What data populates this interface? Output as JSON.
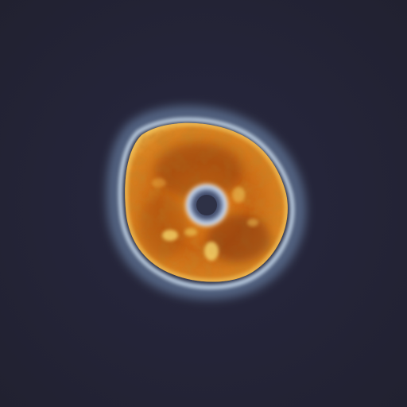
{
  "image": {
    "subject": "cell-micrograph",
    "colors": {
      "background": "#23232f",
      "halo": "#b9d6ee",
      "rim": "#e7b85a",
      "body": "#c86412",
      "core": "#7a2f08",
      "nucleus_ring": "#cfe3ff",
      "nucleus": "#2e3146"
    }
  }
}
